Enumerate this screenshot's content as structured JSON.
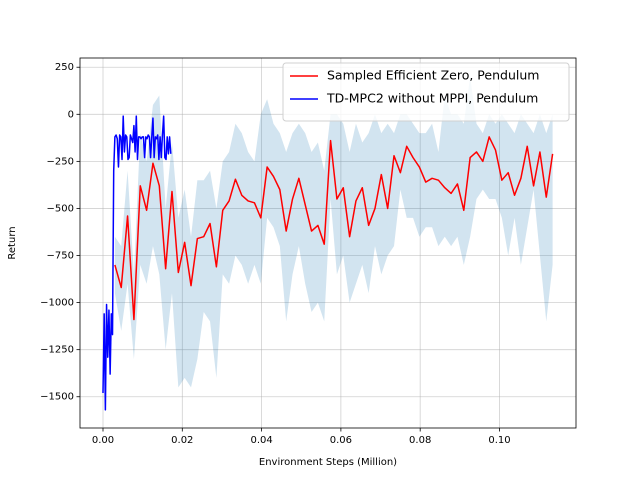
{
  "chart_data": {
    "type": "line",
    "xlabel": "Environment Steps (Million)",
    "ylabel": "Return",
    "xlim": [
      -0.0058,
      0.1193
    ],
    "ylim": [
      -1666,
      299
    ],
    "xticks": [
      {
        "value": 0,
        "label": "0.00"
      },
      {
        "value": 0.02,
        "label": "0.02"
      },
      {
        "value": 0.04,
        "label": "0.04"
      },
      {
        "value": 0.06,
        "label": "0.06"
      },
      {
        "value": 0.08,
        "label": "0.08"
      },
      {
        "value": 0.1,
        "label": "0.10"
      }
    ],
    "yticks": [
      250,
      0,
      {
        "value": -250,
        "label": "−250"
      },
      {
        "value": -500,
        "label": "−500"
      },
      {
        "value": -750,
        "label": "−750"
      },
      {
        "value": -1000,
        "label": "−1000"
      },
      {
        "value": -1250,
        "label": "−1250"
      },
      {
        "value": -1500,
        "label": "−1500"
      }
    ],
    "grid": true,
    "legend": "upper right",
    "series": [
      {
        "name": "Sampled Efficient Zero, Pendulum",
        "color": "#ff0000",
        "band_color": "#1f77b4",
        "x": [
          0.003,
          0.0046,
          0.0062,
          0.0078,
          0.0094,
          0.011,
          0.0126,
          0.0142,
          0.0158,
          0.0174,
          0.019,
          0.0206,
          0.0222,
          0.0238,
          0.0254,
          0.027,
          0.0286,
          0.0302,
          0.0318,
          0.0334,
          0.035,
          0.0366,
          0.0382,
          0.0398,
          0.0414,
          0.043,
          0.0446,
          0.0462,
          0.0478,
          0.0494,
          0.051,
          0.0526,
          0.0542,
          0.0558,
          0.0574,
          0.059,
          0.0606,
          0.0622,
          0.0638,
          0.0654,
          0.067,
          0.0686,
          0.0702,
          0.0718,
          0.0734,
          0.075,
          0.0766,
          0.0782,
          0.0798,
          0.0814,
          0.083,
          0.0846,
          0.0862,
          0.0878,
          0.0894,
          0.091,
          0.0926,
          0.0942,
          0.0958,
          0.0974,
          0.099,
          0.1006,
          0.1022,
          0.1038,
          0.1054,
          0.107,
          0.1086,
          0.1102,
          0.1118,
          0.1134
        ],
        "values": [
          -800,
          -920,
          -540,
          -1090,
          -380,
          -510,
          -260,
          -380,
          -820,
          -410,
          -840,
          -680,
          -910,
          -660,
          -650,
          -580,
          -810,
          -510,
          -460,
          -345,
          -430,
          -460,
          -470,
          -550,
          -280,
          -330,
          -400,
          -620,
          -450,
          -340,
          -480,
          -620,
          -590,
          -690,
          -140,
          -450,
          -390,
          -650,
          -460,
          -390,
          -590,
          -500,
          -320,
          -500,
          -220,
          -310,
          -170,
          -230,
          -280,
          -360,
          -340,
          -350,
          -390,
          -420,
          -370,
          -510,
          -230,
          -200,
          -250,
          -120,
          -190,
          -350,
          -310,
          -430,
          -340,
          -170,
          -380,
          -200,
          -440,
          -210
        ],
        "band_upper": [
          -650,
          -700,
          -300,
          -850,
          -100,
          -250,
          50,
          100,
          -500,
          -150,
          -550,
          -400,
          -650,
          -350,
          -350,
          -300,
          -500,
          -250,
          -200,
          -50,
          -100,
          -200,
          -250,
          0,
          80,
          -50,
          -100,
          -200,
          -100,
          -50,
          -100,
          -200,
          -150,
          -300,
          0,
          0,
          -50,
          -200,
          -50,
          -150,
          -100,
          0,
          -100,
          -50,
          -100,
          0,
          0,
          -50,
          -100,
          -100,
          -50,
          -200,
          100,
          0,
          0,
          -50,
          200,
          -50,
          -100,
          0,
          -50,
          0,
          -50,
          -100,
          0,
          -50,
          -100,
          0,
          -100,
          0
        ],
        "band_lower": [
          -950,
          -1150,
          -900,
          -1300,
          -800,
          -900,
          -700,
          -850,
          -1250,
          -950,
          -1450,
          -1400,
          -1450,
          -1300,
          -1050,
          -1100,
          -1400,
          -850,
          -900,
          -750,
          -800,
          -900,
          -800,
          -900,
          -550,
          -600,
          -700,
          -1100,
          -850,
          -700,
          -900,
          -1050,
          -1000,
          -1100,
          -450,
          -850,
          -750,
          -1000,
          -900,
          -800,
          -950,
          -700,
          -850,
          -750,
          -700,
          -400,
          -550,
          -550,
          -650,
          -600,
          -600,
          -700,
          -650,
          -700,
          -650,
          -800,
          -650,
          -450,
          -400,
          -450,
          -450,
          -550,
          -750,
          -550,
          -800,
          -600,
          -400,
          -750,
          -1100,
          -800
        ]
      },
      {
        "name": "TD-MPC2 without MPPI, Pendulum",
        "color": "#0000ff",
        "x": [
          0,
          0.0003,
          0.0006,
          0.0009,
          0.0012,
          0.0015,
          0.0018,
          0.0021,
          0.0024,
          0.0027,
          0.003,
          0.0033,
          0.0036,
          0.0039,
          0.0042,
          0.0045,
          0.0048,
          0.0051,
          0.0054,
          0.0057,
          0.006,
          0.0063,
          0.0066,
          0.0069,
          0.0072,
          0.0075,
          0.0078,
          0.0081,
          0.0084,
          0.0087,
          0.009,
          0.0093,
          0.0096,
          0.0099,
          0.0102,
          0.0105,
          0.0108,
          0.0111,
          0.0114,
          0.0117,
          0.012,
          0.0123,
          0.0126,
          0.0129,
          0.0132,
          0.0135,
          0.0138,
          0.0141,
          0.0144,
          0.0147,
          0.015,
          0.0153,
          0.0156,
          0.0159,
          0.0162,
          0.0165,
          0.0168,
          0.0171
        ],
        "values": [
          -1480,
          -1060,
          -1570,
          -1010,
          -1290,
          -1040,
          -1380,
          -1060,
          -1170,
          -300,
          -120,
          -110,
          -130,
          -280,
          -110,
          -120,
          -240,
          -10,
          -200,
          -110,
          -120,
          -240,
          -230,
          -110,
          -130,
          -150,
          -60,
          -200,
          -10,
          -240,
          -120,
          -120,
          -130,
          -120,
          -120,
          -230,
          -120,
          -130,
          -110,
          -120,
          -230,
          -120,
          -20,
          -230,
          -120,
          -130,
          -110,
          -240,
          -120,
          -230,
          -110,
          -10,
          -230,
          -240,
          -120,
          -210,
          -120,
          -210
        ]
      }
    ]
  }
}
